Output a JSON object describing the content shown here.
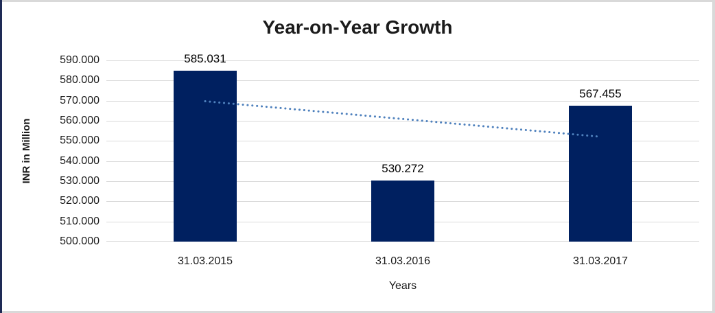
{
  "chart_data": {
    "type": "bar",
    "title": "Year-on-Year Growth",
    "xlabel": "Years",
    "ylabel": "INR in Million",
    "categories": [
      "31.03.2015",
      "31.03.2016",
      "31.03.2017"
    ],
    "values": [
      585.031,
      530.272,
      567.455
    ],
    "value_labels": [
      "585.031",
      "530.272",
      "567.455"
    ],
    "ylim": [
      500,
      590
    ],
    "ytick_step": 10,
    "yticks": [
      {
        "value": 500,
        "label": "500.000"
      },
      {
        "value": 510,
        "label": "510.000"
      },
      {
        "value": 520,
        "label": "520.000"
      },
      {
        "value": 530,
        "label": "530.000"
      },
      {
        "value": 540,
        "label": "540.000"
      },
      {
        "value": 550,
        "label": "550.000"
      },
      {
        "value": 560,
        "label": "560.000"
      },
      {
        "value": 570,
        "label": "570.000"
      },
      {
        "value": 580,
        "label": "580.000"
      },
      {
        "value": 590,
        "label": "590.000"
      }
    ],
    "grid": true,
    "legend": "none",
    "trendline": {
      "type": "linear",
      "style": "dotted",
      "points": [
        {
          "x": 0,
          "y": 569.7
        },
        {
          "x": 2,
          "y": 552.1
        }
      ]
    }
  },
  "colors": {
    "bar": "#002060",
    "trendline": "#4f81bd",
    "gridline": "#d9d9d9",
    "title_text": "#1c1c1c",
    "axis_text": "#1a1a1a",
    "frame_border": "#d9d9d9",
    "left_edge": "#1e2a55"
  }
}
